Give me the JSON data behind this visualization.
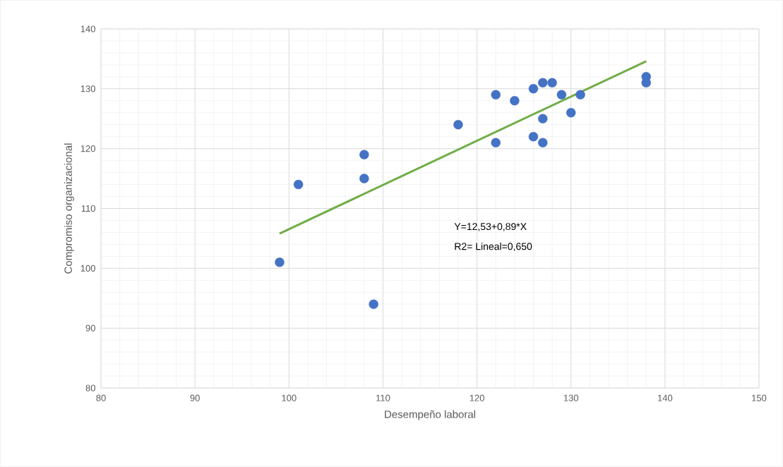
{
  "chart_data": {
    "type": "scatter",
    "xlabel": "Desempeño laboral",
    "ylabel": "Compromiso organizacional",
    "xlim": [
      80,
      150
    ],
    "xticks": [
      80,
      90,
      100,
      110,
      120,
      130,
      140,
      150
    ],
    "ylim": [
      80,
      140
    ],
    "yticks": [
      80,
      90,
      100,
      110,
      120,
      130,
      140
    ],
    "grid": true,
    "series": [
      {
        "marker": "circle",
        "color": "#4472c4",
        "x": [
          99,
          101,
          108,
          108,
          109,
          118,
          122,
          122,
          124,
          126,
          126,
          127,
          128,
          127,
          127,
          129,
          130,
          131,
          138,
          138
        ],
        "values": [
          101,
          114,
          119,
          115,
          94,
          124,
          129,
          121,
          128,
          130,
          122,
          131,
          131,
          125,
          121,
          129,
          126,
          129,
          132,
          131
        ]
      },
      {
        "type": "line",
        "color": "#70ad47",
        "line_style": "solid",
        "marker": "none",
        "x": [
          99,
          138
        ],
        "values": [
          105.8,
          134.6
        ]
      }
    ],
    "annotations": [
      "Y=12,53+0,89*X",
      "R2= Lineal=0,650"
    ]
  }
}
